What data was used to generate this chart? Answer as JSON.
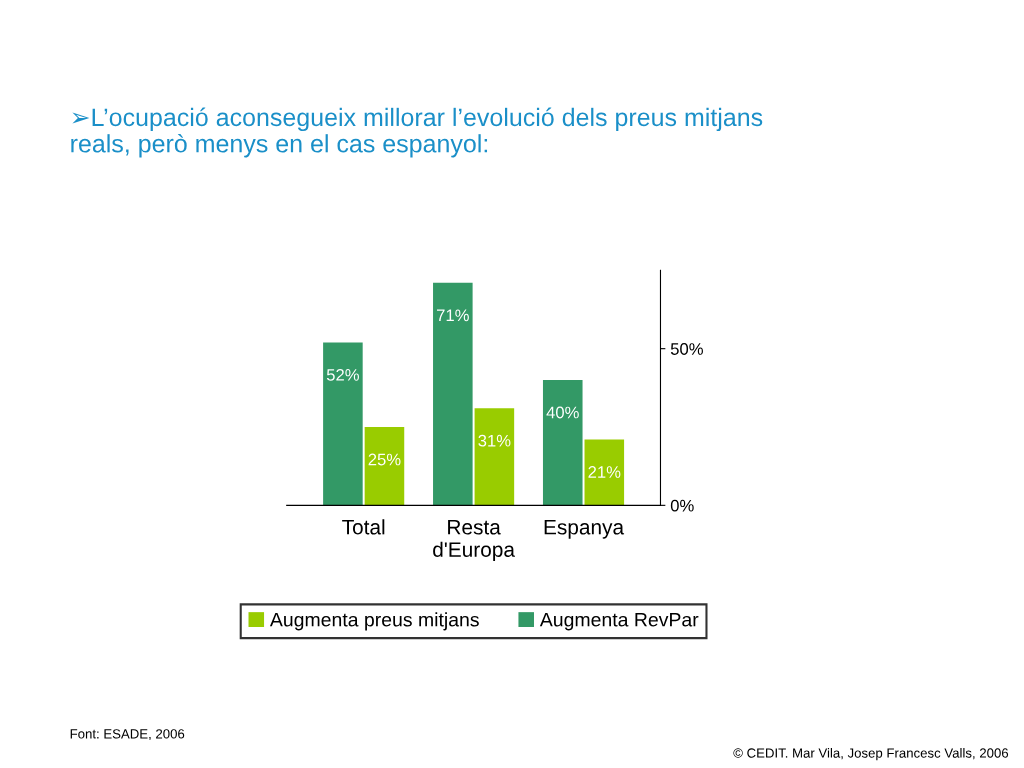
{
  "chart_data": {
    "type": "bar",
    "title": "➢L’ocupació aconsegueix millorar l’evolució dels preus mitjans\nreals, però menys en el cas espanyol:",
    "categories": [
      "Total",
      "Resta\nd'Europa",
      "Espanya"
    ],
    "series": [
      {
        "name": "Augmenta preus mitjans",
        "color": "#99cc00",
        "values": [
          25,
          31,
          21
        ],
        "value_labels": [
          "25%",
          "31%",
          "21%"
        ]
      },
      {
        "name": "Augmenta RevPar",
        "color": "#339966",
        "values": [
          52,
          71,
          40
        ],
        "value_labels": [
          "52%",
          "71%",
          "40%"
        ]
      }
    ],
    "ylim": [
      0,
      75
    ],
    "yticks": [
      {
        "value": 0,
        "label": "0%"
      },
      {
        "value": 50,
        "label": "50%"
      }
    ],
    "grid": false,
    "legend": "bottom",
    "annotations": [
      "Font: ESADE, 2006",
      "© CEDIT. Mar Vila, Josep Francesc Valls, 2006"
    ]
  }
}
